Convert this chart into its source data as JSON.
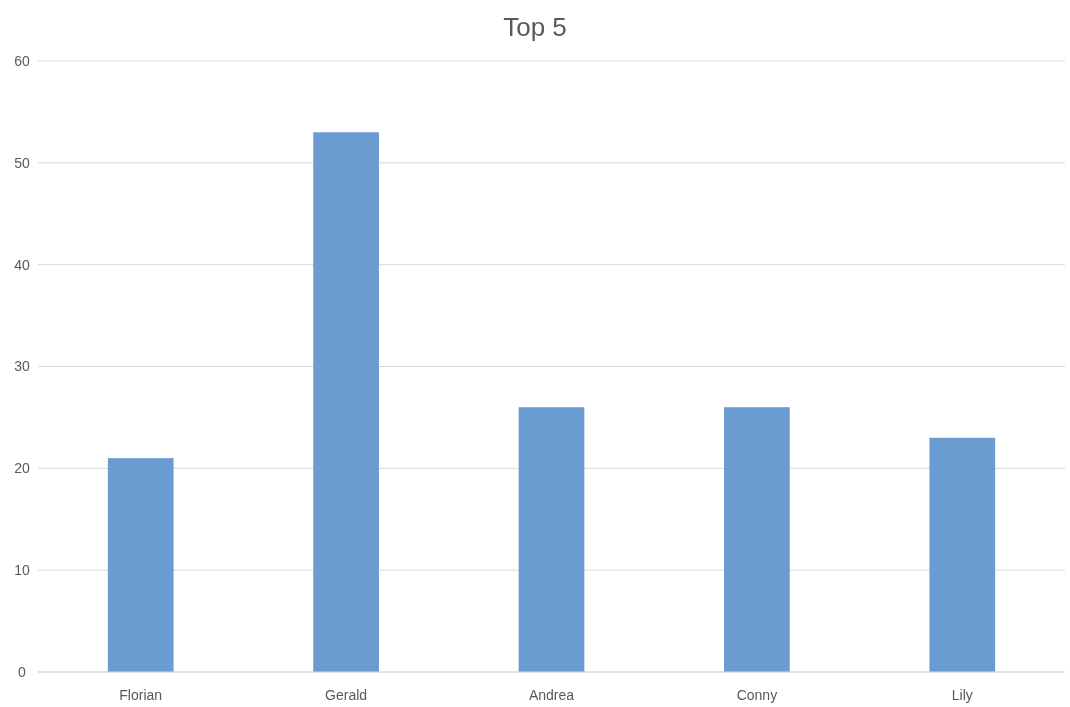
{
  "chart_data": {
    "type": "bar",
    "title": "Top 5",
    "categories": [
      "Florian",
      "Gerald",
      "Andrea",
      "Conny",
      "Lily"
    ],
    "values": [
      21,
      53,
      26,
      26,
      23
    ],
    "color": "#6a9bd1",
    "ylim": [
      0,
      60
    ],
    "yticks": [
      0,
      10,
      20,
      30,
      40,
      50,
      60
    ],
    "grid": "y"
  }
}
